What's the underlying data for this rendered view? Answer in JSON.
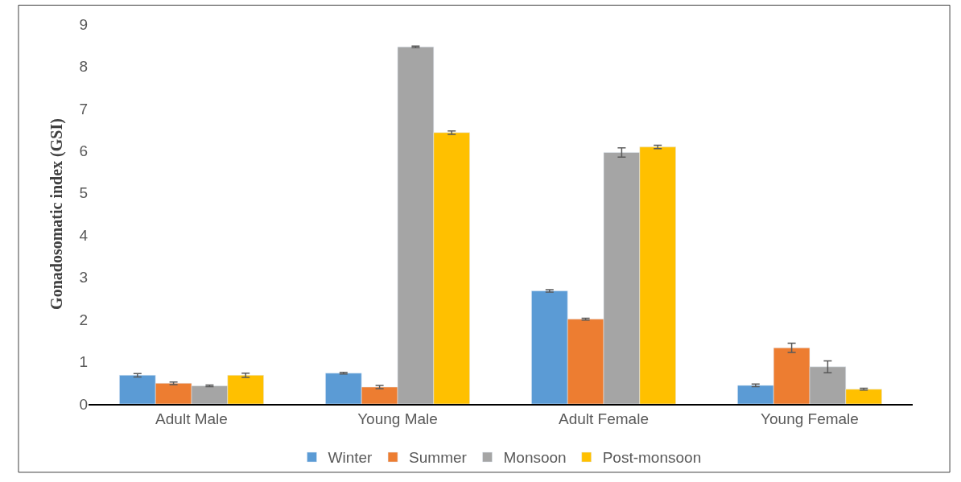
{
  "chart_data": {
    "type": "bar",
    "ylabel": "Gonadosomatic index (GSI)",
    "categories": [
      "Adult Male",
      "Young Male",
      "Adult Female",
      "Young Female"
    ],
    "series": [
      {
        "name": "Winter",
        "color": "#5b9bd5",
        "values": [
          0.68,
          0.73,
          2.68,
          0.44
        ],
        "errors": [
          0.04,
          0.02,
          0.03,
          0.03
        ]
      },
      {
        "name": "Summer",
        "color": "#ed7d31",
        "values": [
          0.49,
          0.4,
          2.01,
          1.33
        ],
        "errors": [
          0.03,
          0.04,
          0.02,
          0.11
        ]
      },
      {
        "name": "Monsoon",
        "color": "#a5a5a5",
        "values": [
          0.43,
          8.46,
          5.96,
          0.88
        ],
        "errors": [
          0.02,
          0.02,
          0.11,
          0.14
        ]
      },
      {
        "name": "Post-monsoon",
        "color": "#ffc000",
        "values": [
          0.68,
          6.43,
          6.09,
          0.35
        ],
        "errors": [
          0.05,
          0.04,
          0.04,
          0.02
        ]
      }
    ],
    "ylim": [
      0,
      9
    ],
    "yticks": [
      0,
      1,
      2,
      3,
      4,
      5,
      6,
      7,
      8,
      9
    ],
    "legend": "bottom"
  }
}
